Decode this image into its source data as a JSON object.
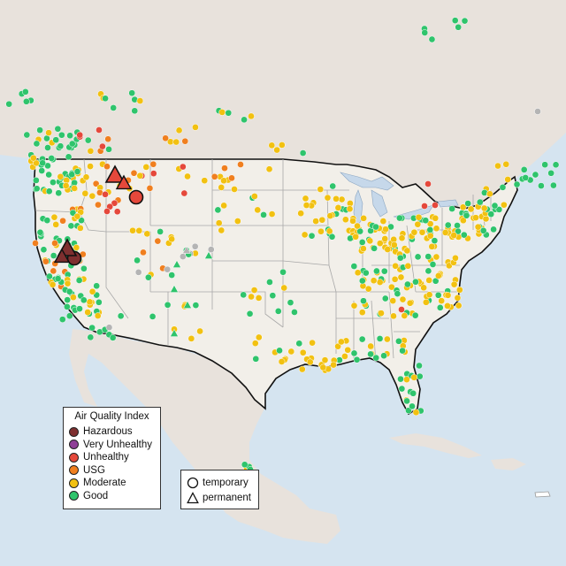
{
  "map": {
    "colors": {
      "ocean": "#d5e4f0",
      "land_us": "#f2efe9",
      "land_other": "#e8e2dc",
      "lakes": "#c6d8ea",
      "state_lines": "#a8a8a8",
      "us_border": "#111111",
      "station_outline": "#ffffff"
    }
  },
  "legend_aqi": {
    "title": "Air Quality Index",
    "items": [
      {
        "label": "Hazardous",
        "color": "#7e2f2f"
      },
      {
        "label": "Very Unhealthy",
        "color": "#8f3f97"
      },
      {
        "label": "Unhealthy",
        "color": "#e5483b"
      },
      {
        "label": "USG",
        "color": "#f07f1f"
      },
      {
        "label": "Moderate",
        "color": "#f2c111"
      },
      {
        "label": "Good",
        "color": "#2fc46c"
      }
    ]
  },
  "legend_monitor": {
    "items": [
      {
        "label": "temporary",
        "shape": "circle-icon"
      },
      {
        "label": "permanent",
        "shape": "triangle-icon"
      }
    ]
  },
  "aqi_levels": {
    "good": "#2fc46c",
    "moderate": "#f2c111",
    "usg": "#f07f1f",
    "unhealthy": "#e5483b",
    "hazardous": "#7e2f2f",
    "nodata": "#b4b4b4"
  }
}
